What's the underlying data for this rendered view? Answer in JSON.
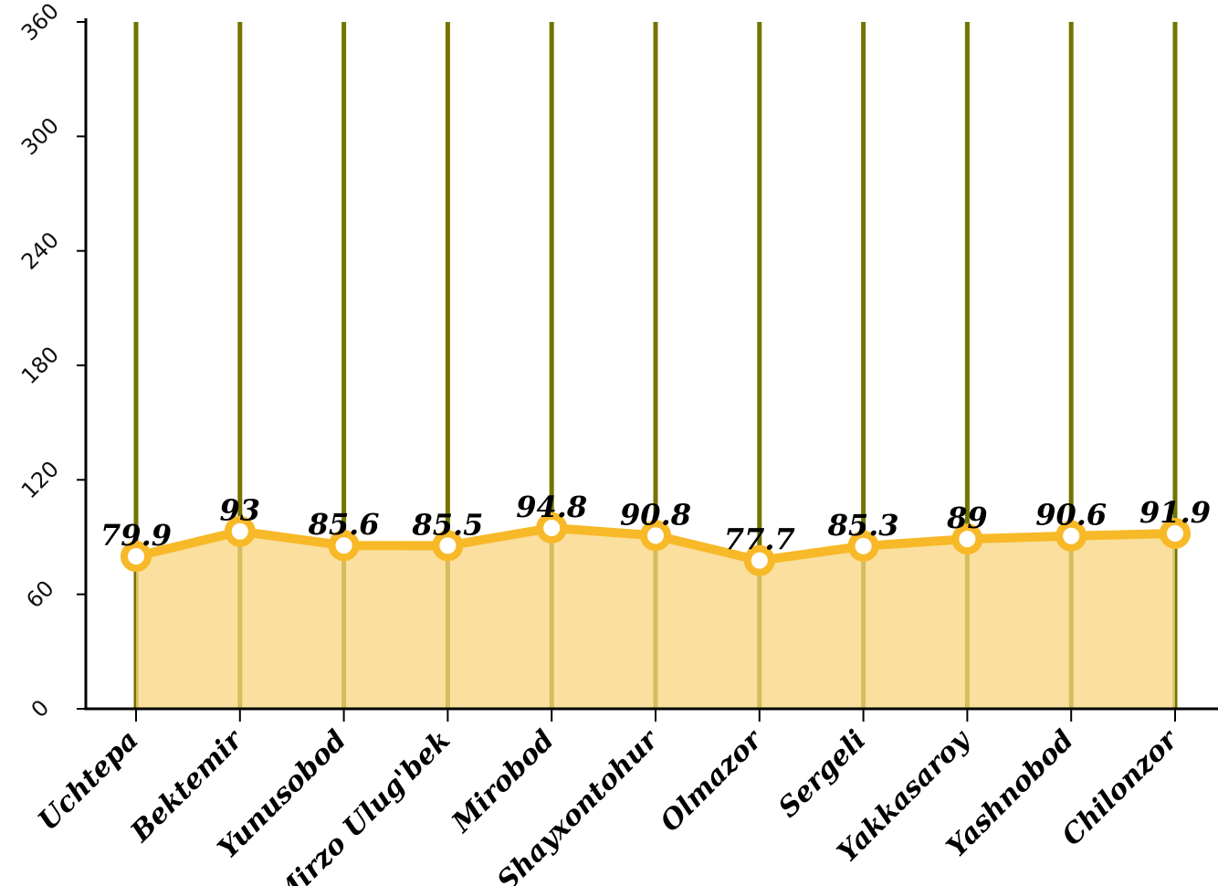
{
  "chart_data": {
    "type": "area",
    "title": "",
    "xlabel": "",
    "ylabel": "",
    "categories": [
      "Uchtepa",
      "Bektemir",
      "Yunusobod",
      "Mirzo Ulug'bek",
      "Mirobod",
      "Shayxontohur",
      "Olmazor",
      "Sergeli",
      "Yakkasaroy",
      "Yashnobod",
      "Chilonzor"
    ],
    "series": [
      {
        "values": [
          79.9,
          93,
          85.6,
          85.5,
          94.8,
          90.8,
          77.7,
          85.3,
          89,
          90.6,
          91.9
        ],
        "labels": [
          "79.9",
          "93",
          "85.6",
          "85.5",
          "94.8",
          "90.8",
          "77.7",
          "85.3",
          "89",
          "90.6",
          "91.9"
        ]
      }
    ],
    "ylim": [
      0,
      360
    ],
    "yticks": [
      0,
      60,
      120,
      180,
      240,
      300,
      360
    ],
    "ytick_labels": [
      "0",
      "60",
      "120",
      "180",
      "240",
      "300",
      "360"
    ],
    "grid": "vertical",
    "legend": "none",
    "colors": {
      "line": "#f8b928",
      "fill": "#f8d47e",
      "marker_fill": "#ffffff",
      "grid": "#747400",
      "axis": "#000000"
    }
  }
}
